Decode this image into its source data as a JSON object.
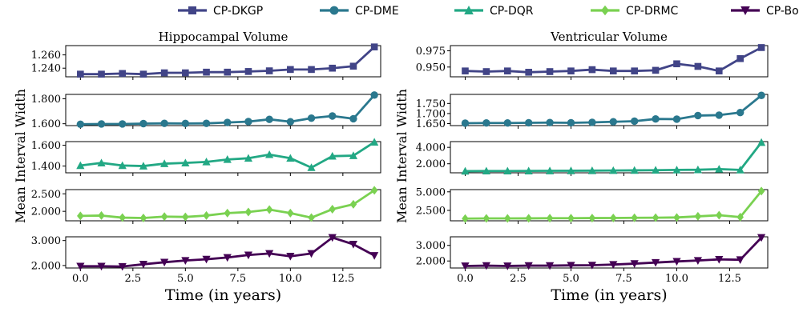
{
  "chart_data": [
    {
      "type": "line",
      "title": "Hippocampal Volume",
      "xlabel": "Time (in years)",
      "ylabel": "Mean Interval Width",
      "x": [
        0,
        1,
        2,
        3,
        4,
        5,
        6,
        7,
        8,
        9,
        10,
        11,
        12,
        13,
        14
      ],
      "xticks": [
        "0.0",
        "2.5",
        "5.0",
        "7.5",
        "10.0",
        "12.5"
      ],
      "xlim": [
        -0.7,
        14.3
      ],
      "legend": "top-center",
      "grid": false,
      "panels": [
        {
          "series": "CP-DKGP",
          "ylim": [
            1.227,
            1.274
          ],
          "yticks": [
            "1.240",
            "1.260"
          ],
          "values": [
            1.231,
            1.231,
            1.232,
            1.231,
            1.233,
            1.233,
            1.234,
            1.234,
            1.235,
            1.236,
            1.238,
            1.238,
            1.24,
            1.243,
            1.272
          ]
        },
        {
          "series": "CP-DME",
          "ylim": [
            1.585,
            1.835
          ],
          "yticks": [
            "1.600",
            "1.800"
          ],
          "values": [
            1.596,
            1.598,
            1.598,
            1.601,
            1.603,
            1.602,
            1.603,
            1.61,
            1.617,
            1.635,
            1.616,
            1.645,
            1.662,
            1.64,
            1.83
          ]
        },
        {
          "series": "CP-DQR",
          "ylim": [
            1.335,
            1.635
          ],
          "yticks": [
            "1.400",
            "1.600"
          ],
          "values": [
            1.405,
            1.43,
            1.405,
            1.4,
            1.423,
            1.43,
            1.44,
            1.463,
            1.475,
            1.51,
            1.475,
            1.385,
            1.495,
            1.5,
            1.63
          ]
        },
        {
          "series": "CP-DRMC",
          "ylim": [
            1.73,
            2.62
          ],
          "yticks": [
            "2.000",
            "2.500"
          ],
          "values": [
            1.87,
            1.88,
            1.82,
            1.81,
            1.85,
            1.84,
            1.88,
            1.95,
            1.98,
            2.05,
            1.95,
            1.82,
            2.06,
            2.2,
            2.6
          ]
        },
        {
          "series": "CP-Bootstrap",
          "ylim": [
            1.9,
            3.15
          ],
          "yticks": [
            "2.000",
            "3.000"
          ],
          "values": [
            1.97,
            1.97,
            1.96,
            2.05,
            2.13,
            2.2,
            2.25,
            2.32,
            2.42,
            2.48,
            2.37,
            2.48,
            3.12,
            2.85,
            2.4
          ]
        }
      ]
    },
    {
      "type": "line",
      "title": "Ventricular Volume",
      "xlabel": "Time (in years)",
      "ylabel": "Mean Interval Width",
      "x": [
        0,
        1,
        2,
        3,
        4,
        5,
        6,
        7,
        8,
        9,
        10,
        11,
        12,
        13,
        14
      ],
      "xticks": [
        "0.0",
        "2.5",
        "5.0",
        "7.5",
        "10.0",
        "12.5"
      ],
      "xlim": [
        -0.7,
        14.3
      ],
      "legend": "top-center",
      "grid": false,
      "panels": [
        {
          "series": "CP-DKGP",
          "ylim": [
            0.935,
            0.983
          ],
          "yticks": [
            "0.950",
            "0.975"
          ],
          "values": [
            0.944,
            0.943,
            0.944,
            0.942,
            0.943,
            0.944,
            0.946,
            0.944,
            0.944,
            0.945,
            0.955,
            0.951,
            0.944,
            0.963,
            0.98
          ]
        },
        {
          "series": "CP-DME",
          "ylim": [
            1.64,
            1.795
          ],
          "yticks": [
            "1.650",
            "1.700",
            "1.750"
          ],
          "values": [
            1.652,
            1.653,
            1.653,
            1.654,
            1.655,
            1.654,
            1.656,
            1.659,
            1.662,
            1.673,
            1.672,
            1.69,
            1.692,
            1.705,
            1.79
          ]
        },
        {
          "series": "CP-DQR",
          "ylim": [
            0.9,
            4.7
          ],
          "yticks": [
            "2.000",
            "4.000"
          ],
          "values": [
            1.1,
            1.12,
            1.12,
            1.13,
            1.14,
            1.15,
            1.16,
            1.18,
            1.2,
            1.22,
            1.25,
            1.27,
            1.35,
            1.25,
            4.6
          ]
        },
        {
          "series": "CP-DRMC",
          "ylim": [
            1.1,
            5.3
          ],
          "yticks": [
            "2.500",
            "5.000"
          ],
          "values": [
            1.4,
            1.42,
            1.42,
            1.43,
            1.45,
            1.45,
            1.47,
            1.48,
            1.5,
            1.52,
            1.55,
            1.7,
            1.85,
            1.6,
            5.1
          ]
        },
        {
          "series": "CP-Bootstrap",
          "ylim": [
            1.55,
            3.55
          ],
          "yticks": [
            "2.000",
            "3.000"
          ],
          "values": [
            1.68,
            1.7,
            1.68,
            1.7,
            1.7,
            1.72,
            1.73,
            1.77,
            1.83,
            1.9,
            1.97,
            2.03,
            2.1,
            2.08,
            3.5
          ]
        }
      ]
    }
  ],
  "legend": [
    {
      "name": "CP-DKGP",
      "color": "#414487",
      "marker": "square"
    },
    {
      "name": "CP-DME",
      "color": "#2a788e",
      "marker": "circle"
    },
    {
      "name": "CP-DQR",
      "color": "#22a884",
      "marker": "triangle-up"
    },
    {
      "name": "CP-DRMC",
      "color": "#7ad151",
      "marker": "diamond"
    },
    {
      "name": "CP-Bootstrap",
      "color": "#440154",
      "marker": "triangle-down"
    }
  ]
}
